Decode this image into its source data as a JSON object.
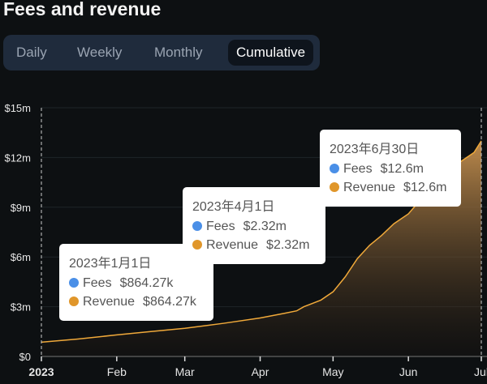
{
  "header": {
    "title": "Fees and revenue"
  },
  "tabs": [
    {
      "label": "Daily"
    },
    {
      "label": "Weekly"
    },
    {
      "label": "Monthly"
    },
    {
      "label": "Cumulative",
      "active": true
    }
  ],
  "colors": {
    "fees": "#4a8fe7",
    "revenue": "#e0962a",
    "line": "#f0a93a"
  },
  "chart_data": {
    "type": "area",
    "title": "Fees and revenue",
    "ylim": [
      0,
      15
    ],
    "yunit": "$m",
    "yticks": [
      {
        "v": 0,
        "label": "$0"
      },
      {
        "v": 3,
        "label": "$3m"
      },
      {
        "v": 6,
        "label": "$6m"
      },
      {
        "v": 9,
        "label": "$9m"
      },
      {
        "v": 12,
        "label": "$12m"
      },
      {
        "v": 15,
        "label": "$15m"
      }
    ],
    "xlim_days": [
      0,
      181
    ],
    "xticks": [
      {
        "d": 0,
        "label": "2023"
      },
      {
        "d": 31,
        "label": "Feb"
      },
      {
        "d": 59,
        "label": "Mar"
      },
      {
        "d": 90,
        "label": "Apr"
      },
      {
        "d": 120,
        "label": "May"
      },
      {
        "d": 151,
        "label": "Jun"
      },
      {
        "d": 181,
        "label": "Jul"
      }
    ],
    "series": [
      {
        "name": "Revenue",
        "x_days": [
          0,
          15,
          31,
          45,
          59,
          75,
          90,
          100,
          105,
          108,
          115,
          120,
          125,
          130,
          135,
          140,
          145,
          151,
          158,
          165,
          170,
          175,
          178,
          181
        ],
        "values": [
          0.86,
          1.05,
          1.3,
          1.5,
          1.7,
          2.0,
          2.32,
          2.6,
          2.75,
          3.0,
          3.4,
          3.9,
          4.8,
          5.9,
          6.7,
          7.3,
          8.0,
          8.6,
          9.8,
          10.7,
          11.5,
          12.0,
          12.3,
          13.0
        ]
      }
    ],
    "tooltips": [
      {
        "date": "2023年1月1日",
        "fees_label": "Fees",
        "fees": "$864.27k",
        "revenue_label": "Revenue",
        "revenue": "$864.27k"
      },
      {
        "date": "2023年4月1日",
        "fees_label": "Fees",
        "fees": "$2.32m",
        "revenue_label": "Revenue",
        "revenue": "$2.32m"
      },
      {
        "date": "2023年6月30日",
        "fees_label": "Fees",
        "fees": "$12.6m",
        "revenue_label": "Revenue",
        "revenue": "$12.6m"
      }
    ]
  }
}
